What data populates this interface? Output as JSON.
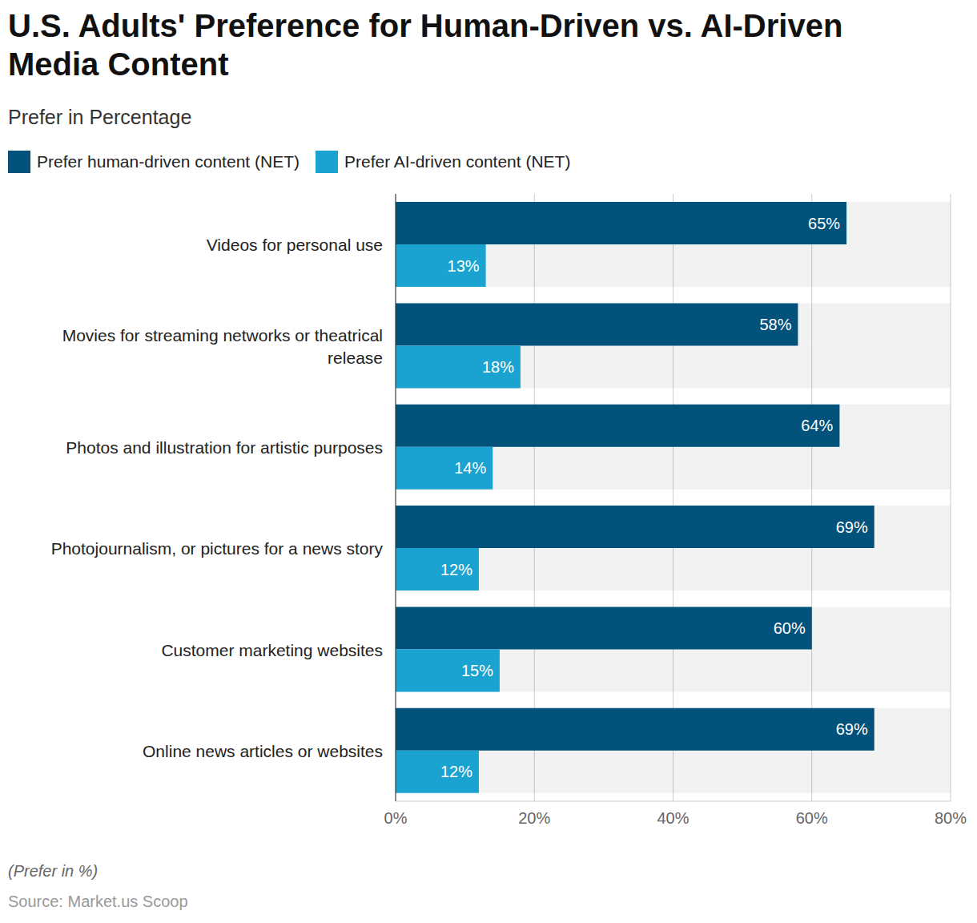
{
  "chart_data": {
    "type": "bar",
    "orientation": "horizontal",
    "title": "U.S. Adults' Preference for Human-Driven vs. AI-Driven Media Content",
    "subtitle": "Prefer in Percentage",
    "annotations": [
      "(Prefer in %)"
    ],
    "source": "Source: Market.us Scoop",
    "categories": [
      "Videos for personal use",
      "Movies for streaming networks or theatrical release",
      "Photos and illustration for artistic purposes",
      "Photojournalism, or pictures for a news story",
      "Customer marketing websites",
      "Online news articles or websites"
    ],
    "series": [
      {
        "name": "Prefer human-driven content (NET)",
        "color": "#02527b",
        "values": [
          65,
          58,
          64,
          69,
          60,
          69
        ],
        "value_labels": [
          "65%",
          "58%",
          "64%",
          "69%",
          "60%",
          "69%"
        ]
      },
      {
        "name": "Prefer AI-driven content (NET)",
        "color": "#1aa3d1",
        "values": [
          13,
          18,
          14,
          12,
          15,
          12
        ],
        "value_labels": [
          "13%",
          "18%",
          "14%",
          "12%",
          "15%",
          "12%"
        ]
      }
    ],
    "xlim": [
      0,
      80
    ],
    "xticks": [
      {
        "value": 0,
        "label": "0%"
      },
      {
        "value": 20,
        "label": "20%"
      },
      {
        "value": 40,
        "label": "40%"
      },
      {
        "value": 60,
        "label": "60%"
      },
      {
        "value": 80,
        "label": "80%"
      }
    ],
    "grid": true,
    "data_labels": true,
    "legend": "top"
  }
}
